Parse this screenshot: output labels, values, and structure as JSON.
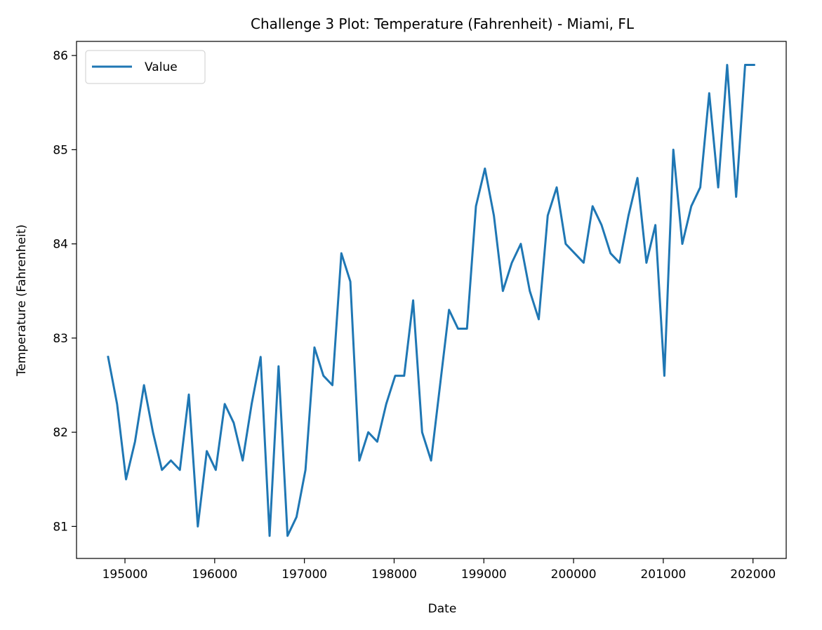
{
  "chart_data": {
    "type": "line",
    "title": "Challenge 3 Plot: Temperature (Fahrenheit) - Miami, FL",
    "xlabel": "Date",
    "ylabel": "Temperature (Fahrenheit)",
    "xlim": [
      194460,
      202370
    ],
    "ylim": [
      80.66,
      86.15
    ],
    "x_ticks": [
      {
        "value": 195000,
        "label": "195000"
      },
      {
        "value": 196000,
        "label": "196000"
      },
      {
        "value": 197000,
        "label": "197000"
      },
      {
        "value": 198000,
        "label": "198000"
      },
      {
        "value": 199000,
        "label": "199000"
      },
      {
        "value": 200000,
        "label": "200000"
      },
      {
        "value": 201000,
        "label": "201000"
      },
      {
        "value": 202000,
        "label": "202000"
      }
    ],
    "y_ticks": [
      {
        "value": 81,
        "label": "81"
      },
      {
        "value": 82,
        "label": "82"
      },
      {
        "value": 83,
        "label": "83"
      },
      {
        "value": 84,
        "label": "84"
      },
      {
        "value": 85,
        "label": "85"
      },
      {
        "value": 86,
        "label": "86"
      }
    ],
    "legend": {
      "placement": "upper-left"
    },
    "grid": false,
    "colors": {
      "series": "#1f77b4"
    },
    "series": [
      {
        "name": "Value",
        "x": [
          194812,
          194912,
          195012,
          195112,
          195212,
          195312,
          195412,
          195512,
          195612,
          195712,
          195812,
          195912,
          196012,
          196112,
          196212,
          196312,
          196412,
          196512,
          196612,
          196712,
          196812,
          196912,
          197012,
          197112,
          197212,
          197312,
          197412,
          197512,
          197612,
          197712,
          197812,
          197912,
          198012,
          198112,
          198212,
          198312,
          198412,
          198512,
          198612,
          198712,
          198812,
          198912,
          199012,
          199112,
          199212,
          199312,
          199412,
          199512,
          199612,
          199712,
          199812,
          199912,
          200012,
          200112,
          200212,
          200312,
          200412,
          200512,
          200612,
          200712,
          200812,
          200912,
          201012,
          201112,
          201212,
          201312,
          201412,
          201512,
          201612,
          201712,
          201812,
          201912,
          202012
        ],
        "values": [
          82.8,
          82.3,
          81.5,
          81.9,
          82.5,
          82.0,
          81.6,
          81.7,
          81.6,
          82.4,
          81.0,
          81.8,
          81.6,
          82.3,
          82.1,
          81.7,
          82.3,
          82.8,
          80.9,
          82.7,
          80.9,
          81.1,
          81.6,
          82.9,
          82.6,
          82.5,
          83.9,
          83.6,
          81.7,
          82.0,
          81.9,
          82.3,
          82.6,
          82.6,
          83.4,
          82.0,
          81.7,
          82.5,
          83.3,
          83.1,
          83.1,
          84.4,
          84.8,
          84.3,
          83.5,
          83.8,
          84.0,
          83.5,
          83.2,
          84.3,
          84.6,
          84.0,
          83.9,
          83.8,
          84.4,
          84.2,
          83.9,
          83.8,
          84.3,
          84.7,
          83.8,
          84.2,
          82.6,
          85.0,
          84.0,
          84.4,
          84.6,
          85.6,
          84.6,
          85.9,
          84.5,
          85.9,
          85.9
        ]
      }
    ]
  }
}
